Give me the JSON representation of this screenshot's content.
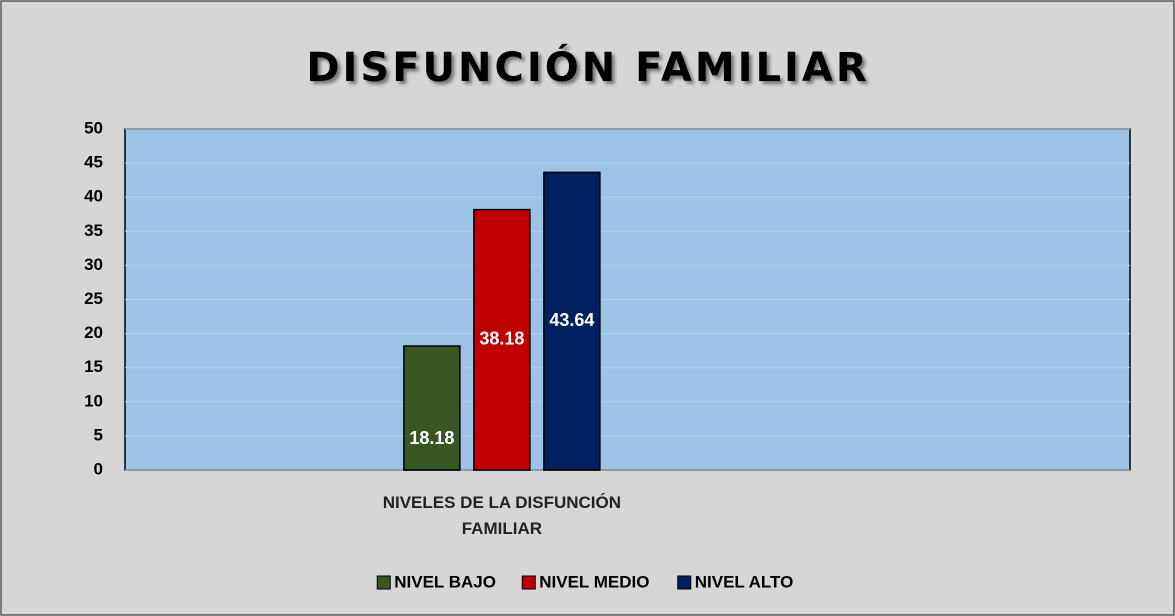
{
  "chart_data": {
    "type": "bar",
    "title": "DISFUNCIÓN FAMILIAR",
    "categories": [
      "NIVELES DE LA DISFUNCIÓN FAMILIAR"
    ],
    "series": [
      {
        "name": "NIVEL BAJO",
        "color": "#375623",
        "values": [
          18.18
        ]
      },
      {
        "name": "NIVEL MEDIO",
        "color": "#c00000",
        "values": [
          38.18
        ]
      },
      {
        "name": "NIVEL ALTO",
        "color": "#002060",
        "values": [
          43.64
        ]
      }
    ],
    "ylim": [
      0,
      50
    ],
    "yticks": [
      0,
      5,
      10,
      15,
      20,
      25,
      30,
      35,
      40,
      45,
      50
    ],
    "grid": true,
    "legend": "bottom"
  }
}
